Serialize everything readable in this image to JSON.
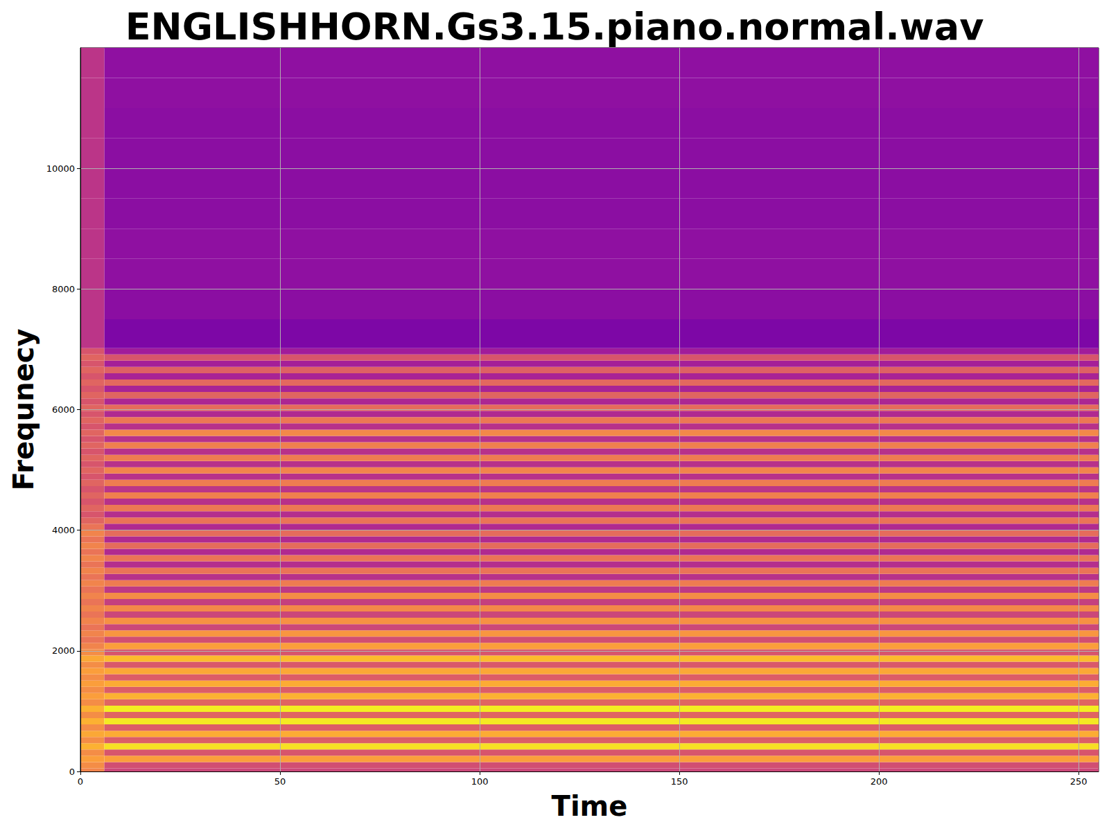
{
  "chart_data": {
    "type": "heatmap",
    "title": "ENGLISHHORN.Gs3.15.piano.normal.wav",
    "xlabel": "Time",
    "ylabel": "Frequnecy",
    "xlim": [
      0,
      255
    ],
    "ylim": [
      0,
      12000
    ],
    "xticks": [
      0,
      50,
      100,
      150,
      200,
      250
    ],
    "yticks": [
      0,
      2000,
      4000,
      6000,
      8000,
      10000
    ],
    "grid": true,
    "color_range": [
      -80,
      0
    ],
    "x_edges": [
      0,
      6,
      255
    ],
    "y_edges": [
      0,
      52,
      156,
      260,
      364,
      468,
      572,
      676,
      780,
      884,
      988,
      1092,
      1196,
      1300,
      1404,
      1508,
      1612,
      1716,
      1820,
      1924,
      2028,
      2132,
      2236,
      2340,
      2444,
      2548,
      2652,
      2756,
      2860,
      2964,
      3068,
      3172,
      3276,
      3380,
      3484,
      3588,
      3692,
      3796,
      3900,
      4004,
      4108,
      4212,
      4316,
      4420,
      4524,
      4628,
      4732,
      4836,
      4940,
      5044,
      5148,
      5252,
      5356,
      5460,
      5564,
      5668,
      5772,
      5876,
      5980,
      6084,
      6188,
      6292,
      6396,
      6500,
      6604,
      6708,
      6812,
      6916,
      7020,
      7500,
      8000,
      8500,
      9000,
      9500,
      10000,
      10500,
      11000,
      11500,
      12000
    ],
    "cells": [
      [
        -24,
        -22,
        -18,
        -22,
        -14,
        -22,
        -16,
        -22,
        -14,
        -22,
        -14,
        -22,
        -18,
        -22,
        -18,
        -22,
        -18,
        -22,
        -16,
        -22,
        -24,
        -28,
        -24,
        -28,
        -24,
        -28,
        -24,
        -28,
        -24,
        -28,
        -24,
        -28,
        -24,
        -28,
        -24,
        -28,
        -24,
        -28,
        -24,
        -28,
        -32,
        -36,
        -32,
        -36,
        -32,
        -36,
        -32,
        -36,
        -32,
        -36,
        -32,
        -36,
        -32,
        -36,
        -32,
        -36,
        -32,
        -36,
        -32,
        -36,
        -32,
        -36,
        -32,
        -36,
        -32,
        -36,
        -32,
        -36,
        -45,
        -45,
        -45,
        -45,
        -45,
        -45,
        -45,
        -45,
        -45,
        -45
      ],
      [
        -40,
        -38,
        -18,
        -36,
        -5,
        -34,
        -15,
        -34,
        -3,
        -32,
        -2,
        -32,
        -14,
        -34,
        -15,
        -34,
        -16,
        -35,
        -12,
        -36,
        -18,
        -38,
        -20,
        -40,
        -21,
        -40,
        -23,
        -42,
        -22,
        -44,
        -26,
        -46,
        -28,
        -47,
        -28,
        -48,
        -30,
        -48,
        -30,
        -48,
        -28,
        -47,
        -27,
        -46,
        -25,
        -45,
        -26,
        -46,
        -24,
        -46,
        -26,
        -46,
        -25,
        -46,
        -23,
        -46,
        -27,
        -48,
        -30,
        -49,
        -32,
        -50,
        -31,
        -50,
        -33,
        -51,
        -36,
        -52,
        -60,
        -57,
        -56,
        -56,
        -57,
        -57,
        -57,
        -57,
        -56,
        -56
      ]
    ]
  }
}
